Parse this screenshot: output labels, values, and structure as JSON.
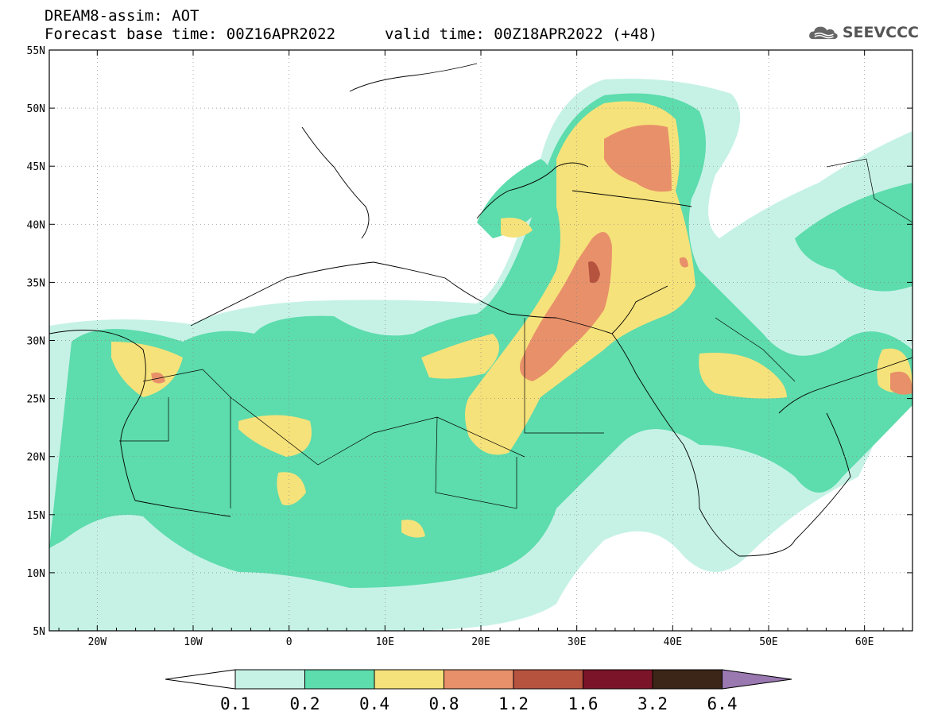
{
  "header": {
    "title": "DREAM8-assim: AOT",
    "base_time": "Forecast base time: 00Z16APR2022",
    "valid_time": "valid time: 00Z18APR2022 (+48)"
  },
  "logo": {
    "text": "SEEVCCC",
    "icon": "cloud-icon"
  },
  "map": {
    "lat_labels": [
      "55N",
      "50N",
      "45N",
      "40N",
      "35N",
      "30N",
      "25N",
      "20N",
      "15N",
      "10N",
      "5N"
    ],
    "lon_labels": [
      "20W",
      "10W",
      "0",
      "10E",
      "20E",
      "30E",
      "40E",
      "50E",
      "60E"
    ],
    "lat_range": [
      5,
      55
    ],
    "lon_range": [
      -25,
      65
    ],
    "colors": {
      "c01": "#c6f2e6",
      "c02": "#5ddcad",
      "c04": "#f6e27a",
      "c08": "#e8906a",
      "c12": "#b5533f",
      "c16": "#7b1428",
      "c32": "#3b2617",
      "c64": "#9a78b0"
    }
  },
  "colorbar": {
    "labels": [
      "0.1",
      "0.2",
      "0.4",
      "0.8",
      "1.2",
      "1.6",
      "3.2",
      "6.4"
    ],
    "colors": [
      "#c6f2e6",
      "#5ddcad",
      "#f6e27a",
      "#e8906a",
      "#b5533f",
      "#7b1428",
      "#3b2617"
    ],
    "over_color": "#9a78b0",
    "under_color": "#ffffff"
  }
}
